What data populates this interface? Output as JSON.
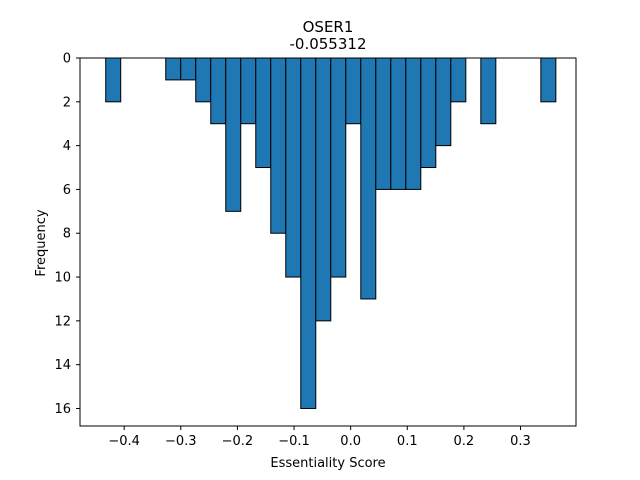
{
  "chart_data": {
    "type": "bar",
    "title": "OSER1",
    "subtitle": "-0.055312",
    "xlabel": "Essentiality Score",
    "ylabel": "Frequency",
    "xlim": [
      -0.478,
      0.398
    ],
    "ylim": [
      16.8,
      0
    ],
    "y_inverted": true,
    "bin_width": 0.0265,
    "bar_color": "#1f77b4",
    "edge_color": "#000000",
    "bins": [
      {
        "x0": -0.4326,
        "value": 2
      },
      {
        "x0": -0.3266,
        "value": 1
      },
      {
        "x0": -0.3001,
        "value": 1
      },
      {
        "x0": -0.2736,
        "value": 2
      },
      {
        "x0": -0.2471,
        "value": 3
      },
      {
        "x0": -0.2206,
        "value": 7
      },
      {
        "x0": -0.1941,
        "value": 3
      },
      {
        "x0": -0.1676,
        "value": 5
      },
      {
        "x0": -0.1411,
        "value": 8
      },
      {
        "x0": -0.1146,
        "value": 10
      },
      {
        "x0": -0.0881,
        "value": 16
      },
      {
        "x0": -0.0616,
        "value": 12
      },
      {
        "x0": -0.0351,
        "value": 10
      },
      {
        "x0": -0.0086,
        "value": 3
      },
      {
        "x0": 0.0179,
        "value": 11
      },
      {
        "x0": 0.0444,
        "value": 6
      },
      {
        "x0": 0.0709,
        "value": 6
      },
      {
        "x0": 0.0974,
        "value": 6
      },
      {
        "x0": 0.1239,
        "value": 5
      },
      {
        "x0": 0.1504,
        "value": 4
      },
      {
        "x0": 0.1769,
        "value": 2
      },
      {
        "x0": 0.2299,
        "value": 3
      },
      {
        "x0": 0.3359,
        "value": 2
      }
    ],
    "xticks": [
      {
        "value": -0.4,
        "label": "−0.4"
      },
      {
        "value": -0.3,
        "label": "−0.3"
      },
      {
        "value": -0.2,
        "label": "−0.2"
      },
      {
        "value": -0.1,
        "label": "−0.1"
      },
      {
        "value": 0.0,
        "label": "0.0"
      },
      {
        "value": 0.1,
        "label": "0.1"
      },
      {
        "value": 0.2,
        "label": "0.2"
      },
      {
        "value": 0.3,
        "label": "0.3"
      }
    ],
    "yticks": [
      {
        "value": 0,
        "label": "0"
      },
      {
        "value": 2,
        "label": "2"
      },
      {
        "value": 4,
        "label": "4"
      },
      {
        "value": 6,
        "label": "6"
      },
      {
        "value": 8,
        "label": "8"
      },
      {
        "value": 10,
        "label": "10"
      },
      {
        "value": 12,
        "label": "12"
      },
      {
        "value": 14,
        "label": "14"
      },
      {
        "value": 16,
        "label": "16"
      }
    ]
  }
}
